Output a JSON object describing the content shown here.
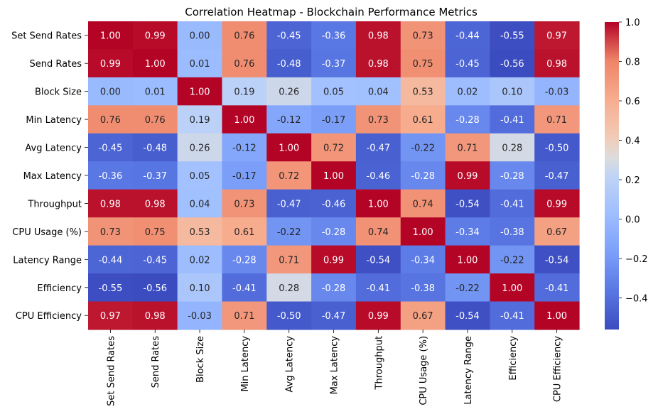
{
  "chart_data": {
    "type": "heatmap",
    "title": "Correlation Heatmap - Blockchain Performance Metrics",
    "row_labels": [
      "Set Send Rates",
      "Send Rates",
      "Block Size",
      "Min Latency",
      "Avg Latency",
      "Max Latency",
      "Throughput",
      "CPU Usage (%)",
      "Latency Range",
      "Efficiency",
      "CPU Efficiency"
    ],
    "col_labels": [
      "Set Send Rates",
      "Send Rates",
      "Block Size",
      "Min Latency",
      "Avg Latency",
      "Max Latency",
      "Throughput",
      "CPU Usage (%)",
      "Latency Range",
      "Efficiency",
      "CPU Efficiency"
    ],
    "values": [
      [
        1.0,
        0.99,
        0.0,
        0.76,
        -0.45,
        -0.36,
        0.98,
        0.73,
        -0.44,
        -0.55,
        0.97
      ],
      [
        0.99,
        1.0,
        0.01,
        0.76,
        -0.48,
        -0.37,
        0.98,
        0.75,
        -0.45,
        -0.56,
        0.98
      ],
      [
        0.0,
        0.01,
        1.0,
        0.19,
        0.26,
        0.05,
        0.04,
        0.53,
        0.02,
        0.1,
        -0.03
      ],
      [
        0.76,
        0.76,
        0.19,
        1.0,
        -0.12,
        -0.17,
        0.73,
        0.61,
        -0.28,
        -0.41,
        0.71
      ],
      [
        -0.45,
        -0.48,
        0.26,
        -0.12,
        1.0,
        0.72,
        -0.47,
        -0.22,
        0.71,
        0.28,
        -0.5
      ],
      [
        -0.36,
        -0.37,
        0.05,
        -0.17,
        0.72,
        1.0,
        -0.46,
        -0.28,
        0.99,
        -0.28,
        -0.47
      ],
      [
        0.98,
        0.98,
        0.04,
        0.73,
        -0.47,
        -0.46,
        1.0,
        0.74,
        -0.54,
        -0.41,
        0.99
      ],
      [
        0.73,
        0.75,
        0.53,
        0.61,
        -0.22,
        -0.28,
        0.74,
        1.0,
        -0.34,
        -0.38,
        0.67
      ],
      [
        -0.44,
        -0.45,
        0.02,
        -0.28,
        0.71,
        0.99,
        -0.54,
        -0.34,
        1.0,
        -0.22,
        -0.54
      ],
      [
        -0.55,
        -0.56,
        0.1,
        -0.41,
        0.28,
        -0.28,
        -0.41,
        -0.38,
        -0.22,
        1.0,
        -0.41
      ],
      [
        0.97,
        0.98,
        -0.03,
        0.71,
        -0.5,
        -0.47,
        0.99,
        0.67,
        -0.54,
        -0.41,
        1.0
      ]
    ],
    "colormap": "coolwarm",
    "vmin": -0.56,
    "vmax": 1.0,
    "colorbar_ticks": [
      1.0,
      0.8,
      0.6,
      0.4,
      0.2,
      0.0,
      -0.2,
      -0.4
    ],
    "colorbar_tick_labels": [
      "1.0",
      "0.8",
      "0.6",
      "0.4",
      "0.2",
      "0.0",
      "−0.2",
      "−0.4"
    ]
  }
}
